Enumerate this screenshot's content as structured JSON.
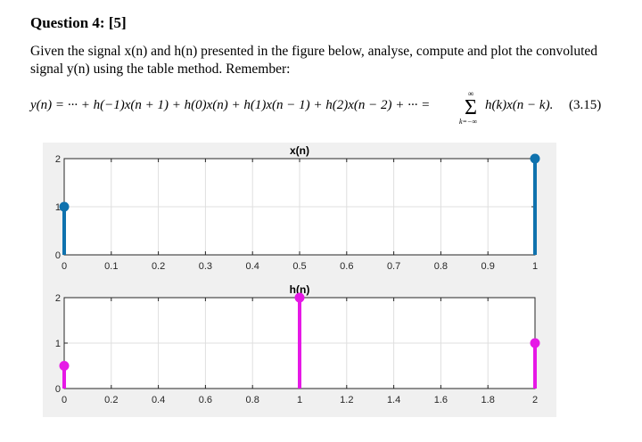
{
  "question": {
    "title": "Question 4: [5]",
    "text": "Given the signal x(n) and h(n) presented in the figure below, analyse, compute and plot the convoluted signal y(n) using the table method. Remember:"
  },
  "equation": {
    "lhs": "y(n) = ··· + h(−1)x(n + 1) + h(0)x(n) + h(1)x(n − 1) + h(2)x(n − 2) + ··· =",
    "sum_upper": "∞",
    "sum_symbol": "Σ",
    "sum_lower": "k=−∞",
    "rhs": "h(k)x(n − k).",
    "number": "(3.15)"
  },
  "chart_data": [
    {
      "type": "stem",
      "title": "x(n)",
      "x": [
        0,
        1
      ],
      "y": [
        1,
        2
      ],
      "xlim": [
        0,
        1
      ],
      "ylim": [
        0,
        2
      ],
      "xticks": [
        "0",
        "0.1",
        "0.2",
        "0.3",
        "0.4",
        "0.5",
        "0.6",
        "0.7",
        "0.8",
        "0.9",
        "1"
      ],
      "yticks": [
        "0",
        "1",
        "2"
      ],
      "grid": true,
      "color": "#0f72ae"
    },
    {
      "type": "stem",
      "title": "h(n)",
      "x": [
        0,
        1,
        2
      ],
      "y": [
        0.5,
        2,
        1
      ],
      "xlim": [
        0,
        2
      ],
      "ylim": [
        0,
        2
      ],
      "xticks": [
        "0",
        "0.2",
        "0.4",
        "0.6",
        "0.8",
        "1",
        "1.2",
        "1.4",
        "1.6",
        "1.8",
        "2"
      ],
      "yticks": [
        "0",
        "1",
        "2"
      ],
      "grid": true,
      "color": "#e619e6"
    }
  ]
}
